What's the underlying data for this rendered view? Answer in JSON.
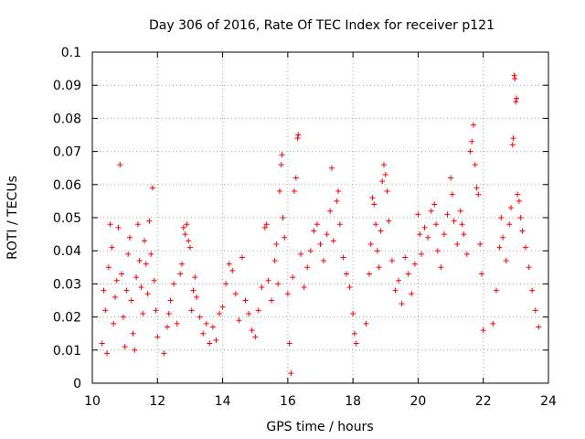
{
  "chart_data": {
    "type": "scatter",
    "title": "Day 306 of 2016, Rate Of TEC Index for receiver p121",
    "xlabel": "GPS time / hours",
    "ylabel": "ROTI / TECUs",
    "xlim": [
      10,
      24
    ],
    "ylim": [
      0,
      0.1
    ],
    "grid": true,
    "x_ticks": [
      10,
      12,
      14,
      16,
      18,
      20,
      22,
      24
    ],
    "x_tick_labels": [
      "10",
      "12",
      "14",
      "16",
      "18",
      "20",
      "22",
      "24"
    ],
    "y_ticks": [
      0,
      0.01,
      0.02,
      0.03,
      0.04,
      0.05,
      0.06,
      0.07,
      0.08,
      0.09,
      0.1
    ],
    "y_tick_labels": [
      "0",
      "0.01",
      "0.02",
      "0.03",
      "0.04",
      "0.05",
      "0.06",
      "0.07",
      "0.08",
      "0.09",
      "0.1"
    ],
    "marker": "+",
    "color": "#ff0000",
    "series": [
      {
        "name": "ROTI",
        "points": [
          [
            10.3,
            0.012
          ],
          [
            10.35,
            0.028
          ],
          [
            10.4,
            0.022
          ],
          [
            10.45,
            0.009
          ],
          [
            10.5,
            0.035
          ],
          [
            10.55,
            0.048
          ],
          [
            10.6,
            0.041
          ],
          [
            10.65,
            0.018
          ],
          [
            10.7,
            0.026
          ],
          [
            10.75,
            0.031
          ],
          [
            10.8,
            0.047
          ],
          [
            10.85,
            0.066
          ],
          [
            10.9,
            0.033
          ],
          [
            10.95,
            0.02
          ],
          [
            11.0,
            0.011
          ],
          [
            11.05,
            0.028
          ],
          [
            11.1,
            0.039
          ],
          [
            11.15,
            0.044
          ],
          [
            11.2,
            0.025
          ],
          [
            11.25,
            0.015
          ],
          [
            11.3,
            0.01
          ],
          [
            11.35,
            0.032
          ],
          [
            11.4,
            0.048
          ],
          [
            11.45,
            0.037
          ],
          [
            11.5,
            0.029
          ],
          [
            11.55,
            0.021
          ],
          [
            11.6,
            0.043
          ],
          [
            11.65,
            0.036
          ],
          [
            11.7,
            0.027
          ],
          [
            11.75,
            0.049
          ],
          [
            11.8,
            0.039
          ],
          [
            11.85,
            0.059
          ],
          [
            11.9,
            0.031
          ],
          [
            11.95,
            0.022
          ],
          [
            12.0,
            0.014
          ],
          [
            12.2,
            0.009
          ],
          [
            12.3,
            0.017
          ],
          [
            12.35,
            0.021
          ],
          [
            12.4,
            0.025
          ],
          [
            12.5,
            0.03
          ],
          [
            12.6,
            0.018
          ],
          [
            12.7,
            0.033
          ],
          [
            12.75,
            0.036
          ],
          [
            12.8,
            0.047
          ],
          [
            12.85,
            0.045
          ],
          [
            12.9,
            0.048
          ],
          [
            12.95,
            0.043
          ],
          [
            13.0,
            0.041
          ],
          [
            13.05,
            0.022
          ],
          [
            13.1,
            0.028
          ],
          [
            13.15,
            0.032
          ],
          [
            13.2,
            0.026
          ],
          [
            13.3,
            0.02
          ],
          [
            13.4,
            0.015
          ],
          [
            13.5,
            0.018
          ],
          [
            13.6,
            0.012
          ],
          [
            13.7,
            0.017
          ],
          [
            13.8,
            0.013
          ],
          [
            13.9,
            0.021
          ],
          [
            14.0,
            0.023
          ],
          [
            14.1,
            0.03
          ],
          [
            14.2,
            0.036
          ],
          [
            14.3,
            0.034
          ],
          [
            14.4,
            0.027
          ],
          [
            14.5,
            0.019
          ],
          [
            14.6,
            0.038
          ],
          [
            14.7,
            0.025
          ],
          [
            14.8,
            0.021
          ],
          [
            14.9,
            0.016
          ],
          [
            15.0,
            0.014
          ],
          [
            15.1,
            0.022
          ],
          [
            15.2,
            0.029
          ],
          [
            15.3,
            0.047
          ],
          [
            15.35,
            0.048
          ],
          [
            15.4,
            0.031
          ],
          [
            15.5,
            0.025
          ],
          [
            15.6,
            0.037
          ],
          [
            15.65,
            0.042
          ],
          [
            15.7,
            0.03
          ],
          [
            15.75,
            0.058
          ],
          [
            15.8,
            0.066
          ],
          [
            15.82,
            0.069
          ],
          [
            15.85,
            0.05
          ],
          [
            15.9,
            0.044
          ],
          [
            16.0,
            0.027
          ],
          [
            16.05,
            0.012
          ],
          [
            16.1,
            0.003
          ],
          [
            16.15,
            0.032
          ],
          [
            16.2,
            0.058
          ],
          [
            16.25,
            0.062
          ],
          [
            16.3,
            0.074
          ],
          [
            16.32,
            0.075
          ],
          [
            16.4,
            0.039
          ],
          [
            16.5,
            0.029
          ],
          [
            16.6,
            0.035
          ],
          [
            16.7,
            0.04
          ],
          [
            16.8,
            0.046
          ],
          [
            16.9,
            0.048
          ],
          [
            17.0,
            0.042
          ],
          [
            17.1,
            0.037
          ],
          [
            17.2,
            0.045
          ],
          [
            17.3,
            0.052
          ],
          [
            17.35,
            0.065
          ],
          [
            17.4,
            0.043
          ],
          [
            17.5,
            0.055
          ],
          [
            17.55,
            0.058
          ],
          [
            17.6,
            0.048
          ],
          [
            17.7,
            0.038
          ],
          [
            17.8,
            0.033
          ],
          [
            17.9,
            0.029
          ],
          [
            18.0,
            0.021
          ],
          [
            18.05,
            0.015
          ],
          [
            18.1,
            0.012
          ],
          [
            18.4,
            0.018
          ],
          [
            18.5,
            0.033
          ],
          [
            18.55,
            0.042
          ],
          [
            18.6,
            0.056
          ],
          [
            18.65,
            0.054
          ],
          [
            18.7,
            0.048
          ],
          [
            18.75,
            0.04
          ],
          [
            18.8,
            0.035
          ],
          [
            18.85,
            0.046
          ],
          [
            18.9,
            0.061
          ],
          [
            18.95,
            0.066
          ],
          [
            19.0,
            0.063
          ],
          [
            19.05,
            0.058
          ],
          [
            19.1,
            0.049
          ],
          [
            19.2,
            0.037
          ],
          [
            19.3,
            0.028
          ],
          [
            19.4,
            0.031
          ],
          [
            19.5,
            0.024
          ],
          [
            19.6,
            0.038
          ],
          [
            19.7,
            0.033
          ],
          [
            19.8,
            0.027
          ],
          [
            19.9,
            0.036
          ],
          [
            20.0,
            0.051
          ],
          [
            20.05,
            0.045
          ],
          [
            20.1,
            0.039
          ],
          [
            20.2,
            0.047
          ],
          [
            20.3,
            0.044
          ],
          [
            20.4,
            0.052
          ],
          [
            20.5,
            0.054
          ],
          [
            20.55,
            0.048
          ],
          [
            20.6,
            0.04
          ],
          [
            20.7,
            0.035
          ],
          [
            20.8,
            0.045
          ],
          [
            20.9,
            0.051
          ],
          [
            21.0,
            0.062
          ],
          [
            21.05,
            0.057
          ],
          [
            21.1,
            0.049
          ],
          [
            21.2,
            0.042
          ],
          [
            21.3,
            0.052
          ],
          [
            21.35,
            0.048
          ],
          [
            21.4,
            0.045
          ],
          [
            21.5,
            0.039
          ],
          [
            21.6,
            0.07
          ],
          [
            21.65,
            0.073
          ],
          [
            21.7,
            0.078
          ],
          [
            21.75,
            0.066
          ],
          [
            21.8,
            0.059
          ],
          [
            21.85,
            0.057
          ],
          [
            21.9,
            0.042
          ],
          [
            21.95,
            0.033
          ],
          [
            22.0,
            0.016
          ],
          [
            22.3,
            0.018
          ],
          [
            22.4,
            0.028
          ],
          [
            22.5,
            0.041
          ],
          [
            22.55,
            0.05
          ],
          [
            22.6,
            0.044
          ],
          [
            22.7,
            0.037
          ],
          [
            22.8,
            0.048
          ],
          [
            22.85,
            0.053
          ],
          [
            22.9,
            0.072
          ],
          [
            22.92,
            0.074
          ],
          [
            22.95,
            0.093
          ],
          [
            22.97,
            0.092
          ],
          [
            23.0,
            0.085
          ],
          [
            23.02,
            0.086
          ],
          [
            23.05,
            0.057
          ],
          [
            23.1,
            0.055
          ],
          [
            23.15,
            0.05
          ],
          [
            23.2,
            0.046
          ],
          [
            23.3,
            0.041
          ],
          [
            23.4,
            0.035
          ],
          [
            23.5,
            0.028
          ],
          [
            23.6,
            0.022
          ],
          [
            23.7,
            0.017
          ]
        ]
      }
    ]
  }
}
